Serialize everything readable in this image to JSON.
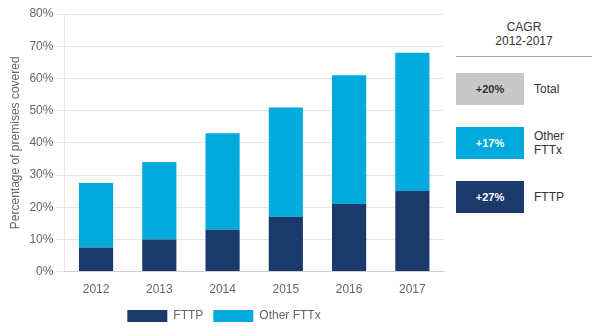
{
  "chart_data": {
    "type": "bar",
    "stacked": true,
    "categories": [
      "2012",
      "2013",
      "2014",
      "2015",
      "2016",
      "2017"
    ],
    "series": [
      {
        "name": "FTTP",
        "color": "#1a3a6b",
        "values": [
          7.5,
          10,
          13,
          17,
          21,
          25
        ]
      },
      {
        "name": "Other FTTx",
        "color": "#00aadd",
        "values": [
          20,
          24,
          30,
          34,
          40,
          43
        ]
      }
    ],
    "ylabel": "Percentage of premises covered",
    "ylim": [
      0,
      80
    ],
    "yticks": [
      {
        "value": 0,
        "label": "0%"
      },
      {
        "value": 10,
        "label": "10%"
      },
      {
        "value": 20,
        "label": "20%"
      },
      {
        "value": 30,
        "label": "30%"
      },
      {
        "value": 40,
        "label": "40%"
      },
      {
        "value": 50,
        "label": "50%"
      },
      {
        "value": 60,
        "label": "60%"
      },
      {
        "value": 70,
        "label": "70%"
      },
      {
        "value": 80,
        "label": "80%"
      }
    ],
    "grid": true,
    "legend": "bottom",
    "annotations": {
      "title": "CAGR\n2012-2017",
      "entries": [
        {
          "label": "+20%",
          "text": "Total",
          "color": "#c8c8c8"
        },
        {
          "label": "+17%",
          "text": "Other FTTx",
          "color": "#00aadd"
        },
        {
          "label": "+27%",
          "text": "FTTP",
          "color": "#1a3a6b"
        }
      ]
    }
  }
}
